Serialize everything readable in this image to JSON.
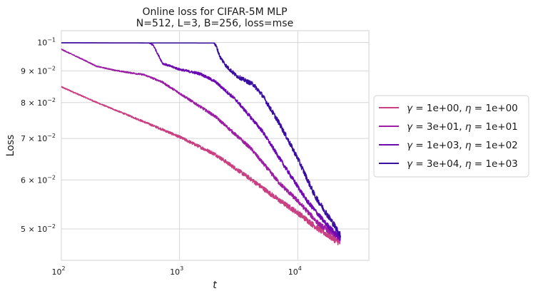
{
  "chart_data": {
    "type": "line",
    "title": "Online loss for CIFAR-5M MLP",
    "subtitle": "N=512, L=3, B=256, loss=mse",
    "xlabel": "t",
    "ylabel": "Loss",
    "xscale": "log",
    "yscale": "log",
    "xlim": [
      100,
      40000
    ],
    "ylim": [
      0.0445,
      0.1045
    ],
    "grid": true,
    "legend_position": "outside-right",
    "x_ticks": [
      {
        "value": 100,
        "base": "10",
        "exp": "2"
      },
      {
        "value": 1000,
        "base": "10",
        "exp": "3"
      },
      {
        "value": 10000,
        "base": "10",
        "exp": "4"
      }
    ],
    "y_ticks": [
      {
        "value": 0.1,
        "label": "10",
        "exp": "−1",
        "mult": ""
      },
      {
        "value": 0.09,
        "label": "10",
        "exp": "−2",
        "mult": "9 × "
      },
      {
        "value": 0.08,
        "label": "10",
        "exp": "−2",
        "mult": "8 × "
      },
      {
        "value": 0.07,
        "label": "10",
        "exp": "−2",
        "mult": "7 × "
      },
      {
        "value": 0.06,
        "label": "10",
        "exp": "−2",
        "mult": "6 × "
      },
      {
        "value": 0.05,
        "label": "10",
        "exp": "−2",
        "mult": "5 × "
      }
    ],
    "series": [
      {
        "name": "γ = 1e+00, η = 1e+00",
        "gamma": "1e+00",
        "eta": "1e+00",
        "color": "#c83f82",
        "noise": 0.012,
        "points": [
          [
            100,
            0.0848
          ],
          [
            200,
            0.08
          ],
          [
            400,
            0.0758
          ],
          [
            700,
            0.0725
          ],
          [
            1000,
            0.0704
          ],
          [
            2000,
            0.066
          ],
          [
            4000,
            0.0602
          ],
          [
            7000,
            0.0556
          ],
          [
            10000,
            0.0531
          ],
          [
            15000,
            0.05
          ],
          [
            23000,
            0.0474
          ]
        ]
      },
      {
        "name": "γ = 3e+01, η = 1e+01",
        "gamma": "3e+01",
        "eta": "1e+01",
        "color": "#9c1fa3",
        "noise": 0.01,
        "points": [
          [
            100,
            0.0975
          ],
          [
            150,
            0.094
          ],
          [
            200,
            0.0915
          ],
          [
            300,
            0.09
          ],
          [
            500,
            0.0887
          ],
          [
            700,
            0.0865
          ],
          [
            1000,
            0.0828
          ],
          [
            2000,
            0.076
          ],
          [
            4000,
            0.0675
          ],
          [
            7000,
            0.0593
          ],
          [
            10000,
            0.0555
          ],
          [
            15000,
            0.051
          ],
          [
            23000,
            0.0481
          ]
        ]
      },
      {
        "name": "γ = 1e+03, η = 1e+02",
        "gamma": "1e+03",
        "eta": "1e+02",
        "color": "#6e0ab2",
        "noise": 0.01,
        "points": [
          [
            100,
            0.0999
          ],
          [
            550,
            0.0998
          ],
          [
            600,
            0.099
          ],
          [
            660,
            0.0955
          ],
          [
            720,
            0.0925
          ],
          [
            1000,
            0.0905
          ],
          [
            1500,
            0.089
          ],
          [
            2000,
            0.0865
          ],
          [
            3000,
            0.0808
          ],
          [
            5000,
            0.072
          ],
          [
            8000,
            0.0625
          ],
          [
            12000,
            0.0555
          ],
          [
            17000,
            0.0512
          ],
          [
            23000,
            0.0482
          ]
        ]
      },
      {
        "name": "γ = 3e+04, η = 1e+03",
        "gamma": "3e+04",
        "eta": "1e+03",
        "color": "#3a0e9e",
        "noise": 0.012,
        "points": [
          [
            100,
            0.0999
          ],
          [
            1950,
            0.0998
          ],
          [
            2050,
            0.0985
          ],
          [
            2200,
            0.0948
          ],
          [
            2500,
            0.0915
          ],
          [
            3000,
            0.0885
          ],
          [
            3600,
            0.0868
          ],
          [
            4200,
            0.0856
          ],
          [
            5000,
            0.0823
          ],
          [
            7000,
            0.074
          ],
          [
            10000,
            0.065
          ],
          [
            14000,
            0.0565
          ],
          [
            20000,
            0.051
          ],
          [
            23000,
            0.0488
          ]
        ]
      }
    ]
  }
}
